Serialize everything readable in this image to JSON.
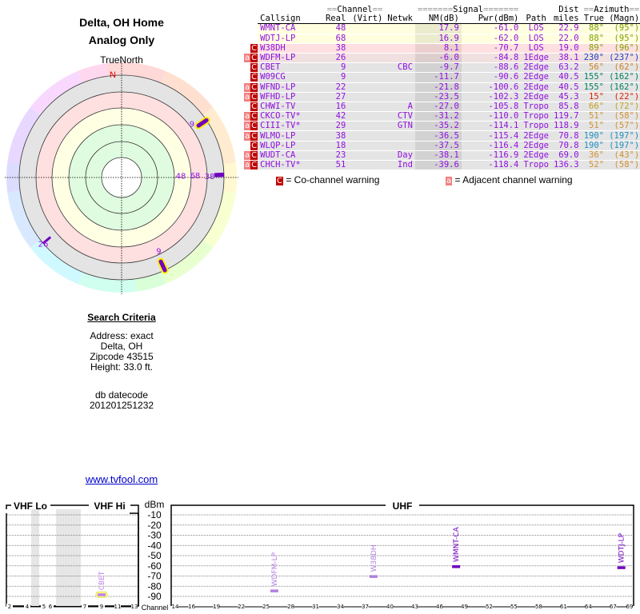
{
  "header": {
    "title": "Delta, OH Home",
    "subtitle": "Analog Only"
  },
  "radar": {
    "north_label": "TrueNorth",
    "n_label": "N",
    "n_color": "#e00000"
  },
  "search": {
    "heading": "Search Criteria",
    "address": "Address: exact",
    "city": "Delta, OH",
    "zip": "Zipcode 43515",
    "height": "Height: 33.0 ft.",
    "db_label": "db datecode",
    "db_value": "201201251232"
  },
  "link": "www.tvfool.com",
  "table": {
    "group_headers": {
      "channel": "Channel",
      "signal": "Signal",
      "dist": "Dist",
      "azimuth": "Azimuth"
    },
    "columns": [
      "Callsign",
      "Real",
      "(Virt)",
      "Netwk",
      "NM(dB)",
      "Pwr(dBm)",
      "Path",
      "miles",
      "True",
      "(Magn)"
    ],
    "rows": [
      {
        "call": "WMNT-CA",
        "real": "48",
        "virt": "",
        "net": "",
        "nm": "17.9",
        "pwr": "-61.0",
        "path": "LOS",
        "dist": "22.9",
        "az": "88°",
        "mag": "(95°)",
        "az_color": "#80a000",
        "bg": "#ffffe0",
        "warn": ""
      },
      {
        "call": "WDTJ-LP",
        "real": "68",
        "virt": "",
        "net": "",
        "nm": "16.9",
        "pwr": "-62.0",
        "path": "LOS",
        "dist": "22.0",
        "az": "88°",
        "mag": "(95°)",
        "az_color": "#80a000",
        "bg": "#ffffe0",
        "warn": ""
      },
      {
        "call": "W38DH",
        "real": "38",
        "virt": "",
        "net": "",
        "nm": "8.1",
        "pwr": "-70.7",
        "path": "LOS",
        "dist": "19.0",
        "az": "89°",
        "mag": "(96°)",
        "az_color": "#80a000",
        "bg": "#ffe0e0",
        "warn": "C"
      },
      {
        "call": "WDFM-LP",
        "real": "26",
        "virt": "",
        "net": "",
        "nm": "-6.0",
        "pwr": "-84.8",
        "path": "1Edge",
        "dist": "38.1",
        "az": "230°",
        "mag": "(237°)",
        "az_color": "#2040c0",
        "bg": "#f0e0e0",
        "warn": "aC"
      },
      {
        "call": "CBET",
        "real": "9",
        "virt": "",
        "net": "CBC",
        "nm": "-9.7",
        "pwr": "-88.6",
        "path": "2Edge",
        "dist": "63.2",
        "az": "56°",
        "mag": "(62°)",
        "az_color": "#d08020",
        "bg": "#e4e4e4",
        "warn": "C"
      },
      {
        "call": "W09CG",
        "real": "9",
        "virt": "",
        "net": "",
        "nm": "-11.7",
        "pwr": "-90.6",
        "path": "2Edge",
        "dist": "40.5",
        "az": "155°",
        "mag": "(162°)",
        "az_color": "#008060",
        "bg": "#e4e4e4",
        "warn": "C"
      },
      {
        "call": "WFND-LP",
        "real": "22",
        "virt": "",
        "net": "",
        "nm": "-21.8",
        "pwr": "-100.6",
        "path": "2Edge",
        "dist": "40.5",
        "az": "155°",
        "mag": "(162°)",
        "az_color": "#008060",
        "bg": "#e4e4e4",
        "warn": "aC"
      },
      {
        "call": "WFHD-LP",
        "real": "27",
        "virt": "",
        "net": "",
        "nm": "-23.5",
        "pwr": "-102.3",
        "path": "2Edge",
        "dist": "45.3",
        "az": "15°",
        "mag": "(22°)",
        "az_color": "#e02000",
        "bg": "#e4e4e4",
        "warn": "aC"
      },
      {
        "call": "CHWI-TV",
        "real": "16",
        "virt": "",
        "net": "A",
        "nm": "-27.0",
        "pwr": "-105.8",
        "path": "Tropo",
        "dist": "85.8",
        "az": "66°",
        "mag": "(72°)",
        "az_color": "#c0a020",
        "bg": "#e4e4e4",
        "warn": "C"
      },
      {
        "call": "CKCO-TV*",
        "real": "42",
        "virt": "",
        "net": "CTV",
        "nm": "-31.2",
        "pwr": "-110.0",
        "path": "Tropo",
        "dist": "119.7",
        "az": "51°",
        "mag": "(58°)",
        "az_color": "#d09030",
        "bg": "#e4e4e4",
        "warn": "aC"
      },
      {
        "call": "CIII-TV*",
        "real": "29",
        "virt": "",
        "net": "GTN",
        "nm": "-35.2",
        "pwr": "-114.1",
        "path": "Tropo",
        "dist": "118.9",
        "az": "51°",
        "mag": "(57°)",
        "az_color": "#d09030",
        "bg": "#e4e4e4",
        "warn": "aC"
      },
      {
        "call": "WLMO-LP",
        "real": "38",
        "virt": "",
        "net": "",
        "nm": "-36.5",
        "pwr": "-115.4",
        "path": "2Edge",
        "dist": "70.8",
        "az": "190°",
        "mag": "(197°)",
        "az_color": "#2090c0",
        "bg": "#e4e4e4",
        "warn": "aC"
      },
      {
        "call": "WLQP-LP",
        "real": "18",
        "virt": "",
        "net": "",
        "nm": "-37.5",
        "pwr": "-116.4",
        "path": "2Edge",
        "dist": "70.8",
        "az": "190°",
        "mag": "(197°)",
        "az_color": "#2090c0",
        "bg": "#e4e4e4",
        "warn": "C"
      },
      {
        "call": "WUDT-CA",
        "real": "23",
        "virt": "",
        "net": "Day",
        "nm": "-38.1",
        "pwr": "-116.9",
        "path": "2Edge",
        "dist": "69.0",
        "az": "36°",
        "mag": "(43°)",
        "az_color": "#d09030",
        "bg": "#e4e4e4",
        "warn": "aC"
      },
      {
        "call": "CHCH-TV*",
        "real": "51",
        "virt": "",
        "net": "Ind",
        "nm": "-39.6",
        "pwr": "-118.4",
        "path": "Tropo",
        "dist": "136.3",
        "az": "52°",
        "mag": "(58°)",
        "az_color": "#d09030",
        "bg": "#e4e4e4",
        "warn": "aC"
      }
    ]
  },
  "legend": {
    "co_badge": "C",
    "co_text": "= Co-channel warning",
    "adj_badge": "a",
    "adj_text": "= Adjacent channel warning"
  },
  "spectrum": {
    "vhf_lo": "VHF Lo",
    "vhf_hi": "VHF Hi",
    "uhf": "UHF",
    "unit": "dBm",
    "channel_label": "Channel",
    "y_ticks": [
      "-10",
      "-20",
      "-30",
      "-40",
      "-50",
      "-60",
      "-70",
      "-80",
      "-90"
    ],
    "vhf_ticks": [
      "2",
      "4",
      "5",
      "6",
      "7",
      "9",
      "11",
      "13"
    ],
    "uhf_ticks": [
      "14",
      "16",
      "19",
      "22",
      "25",
      "28",
      "31",
      "34",
      "37",
      "40",
      "43",
      "46",
      "49",
      "52",
      "55",
      "58",
      "61",
      "64",
      "67",
      "69"
    ],
    "stations": [
      {
        "call": "CBET",
        "ch": 9,
        "pwr": -88.6,
        "color": "#c080f0",
        "highlight": true
      },
      {
        "call": "WDFM-LP",
        "ch": 26,
        "pwr": -84.8,
        "color": "#b080e0"
      },
      {
        "call": "W38DH",
        "ch": 38,
        "pwr": -70.7,
        "color": "#b080e0"
      },
      {
        "call": "WMNT-CA",
        "ch": 48,
        "pwr": -61.0,
        "color": "#7000c0"
      },
      {
        "call": "WDTJ-LP",
        "ch": 68,
        "pwr": -62.0,
        "color": "#7000c0"
      }
    ]
  }
}
